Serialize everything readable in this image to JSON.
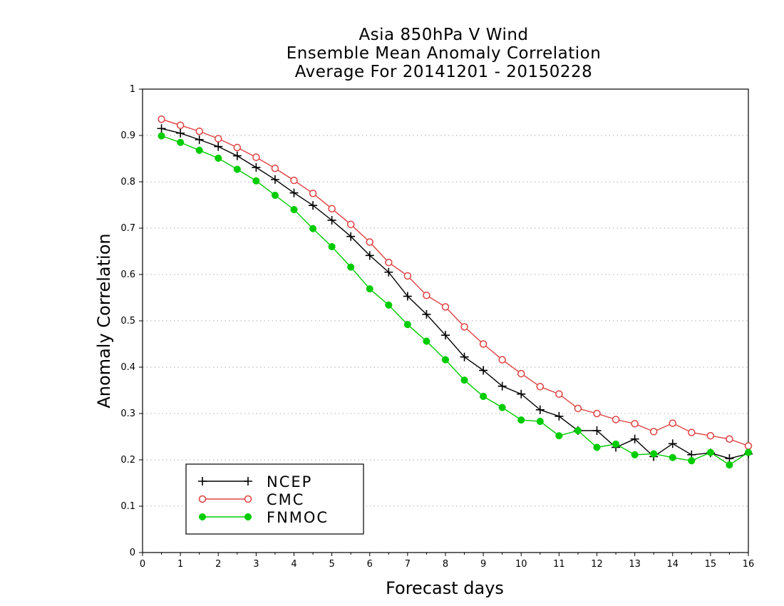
{
  "chart_data": {
    "type": "line",
    "title": [
      "Asia 850hPa V Wind",
      "Ensemble Mean Anomaly Correlation",
      "Average For 20141201 - 20150228"
    ],
    "xlabel": "Forecast days",
    "ylabel": "Anomaly Correlation",
    "xlim": [
      0,
      16
    ],
    "ylim": [
      0,
      1
    ],
    "xticks": [
      "0",
      "1",
      "2",
      "3",
      "4",
      "5",
      "6",
      "7",
      "8",
      "9",
      "10",
      "11",
      "12",
      "13",
      "14",
      "15",
      "16"
    ],
    "yticks": [
      "0",
      "0.1",
      "0.2",
      "0.3",
      "0.4",
      "0.5",
      "0.6",
      "0.7",
      "0.8",
      "0.9",
      "1"
    ],
    "grid": "horizontal dotted",
    "legend_position": "bottom-left",
    "x": [
      0.5,
      1,
      1.5,
      2,
      2.5,
      3,
      3.5,
      4,
      4.5,
      5,
      5.5,
      6,
      6.5,
      7,
      7.5,
      8,
      8.5,
      9,
      9.5,
      10,
      10.5,
      11,
      11.5,
      12,
      12.5,
      13,
      13.5,
      14,
      14.5,
      15,
      15.5,
      16
    ],
    "series": [
      {
        "name": "NCEP",
        "color": "#000000",
        "marker": "plus",
        "values": [
          0.915,
          0.905,
          0.891,
          0.876,
          0.856,
          0.831,
          0.805,
          0.776,
          0.749,
          0.717,
          0.682,
          0.641,
          0.605,
          0.553,
          0.514,
          0.469,
          0.422,
          0.393,
          0.359,
          0.342,
          0.308,
          0.294,
          0.263,
          0.263,
          0.227,
          0.245,
          0.207,
          0.235,
          0.211,
          0.215,
          0.203,
          0.213
        ]
      },
      {
        "name": "CMC",
        "color": "#e04040",
        "marker": "open-circle",
        "values": [
          0.935,
          0.922,
          0.909,
          0.893,
          0.874,
          0.853,
          0.829,
          0.803,
          0.775,
          0.742,
          0.708,
          0.67,
          0.626,
          0.597,
          0.555,
          0.53,
          0.487,
          0.45,
          0.416,
          0.386,
          0.358,
          0.342,
          0.311,
          0.3,
          0.287,
          0.278,
          0.261,
          0.279,
          0.259,
          0.252,
          0.245,
          0.23
        ]
      },
      {
        "name": "FNMOC",
        "color": "#00cc00",
        "marker": "filled-circle",
        "values": [
          0.899,
          0.885,
          0.868,
          0.851,
          0.827,
          0.802,
          0.771,
          0.74,
          0.699,
          0.66,
          0.616,
          0.569,
          0.534,
          0.492,
          0.456,
          0.416,
          0.372,
          0.337,
          0.313,
          0.286,
          0.283,
          0.252,
          0.263,
          0.227,
          0.234,
          0.211,
          0.213,
          0.205,
          0.198,
          0.216,
          0.189,
          0.216
        ]
      }
    ]
  }
}
